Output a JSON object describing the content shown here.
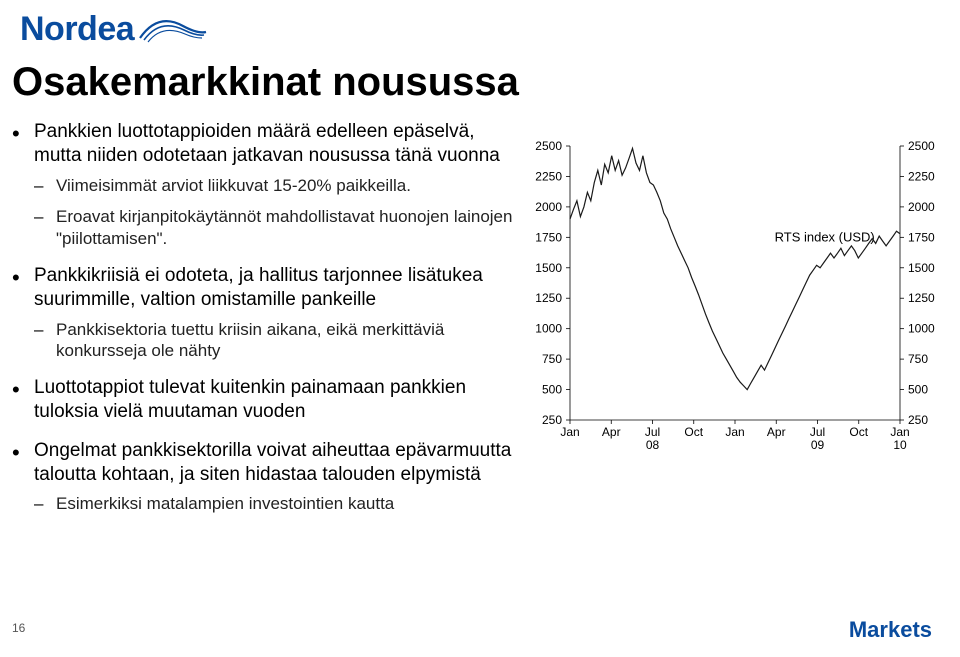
{
  "logo": {
    "text": "Nordea"
  },
  "title": "Osakemarkkinat nousussa",
  "bullets": [
    {
      "text": "Pankkien luottotappioiden määrä edelleen epäselvä, mutta niiden odotetaan jatkavan nousussa tänä vuonna",
      "sub": [
        "Viimeisimmät arviot liikkuvat 15-20% paikkeilla.",
        "Eroavat kirjanpitokäytännöt mahdollistavat huonojen lainojen \"piilottamisen\"."
      ]
    },
    {
      "text": "Pankkikriisiä ei odoteta, ja hallitus tarjonnee lisätukea suurimmille, valtion omistamille pankeille",
      "sub": [
        "Pankkisektoria tuettu kriisin aikana, eikä merkittäviä konkursseja ole nähty"
      ]
    },
    {
      "text": "Luottotappiot tulevat kuitenkin painamaan pankkien tuloksia vielä muutaman vuoden",
      "sub": []
    },
    {
      "text": "Ongelmat pankkisektorilla voivat aiheuttaa epävarmuutta taloutta kohtaan, ja siten hidastaa talouden elpymistä",
      "sub": [
        "Esimerkiksi matalampien investointien kautta"
      ]
    }
  ],
  "chart": {
    "type": "line",
    "series_label": "RTS index (USD)",
    "y_ticks": [
      250,
      500,
      750,
      1000,
      1250,
      1500,
      1750,
      2000,
      2250,
      2500
    ],
    "ylim": [
      250,
      2500
    ],
    "x_ticks": [
      "Jan",
      "Apr",
      "Jul\n08",
      "Oct",
      "Jan",
      "Apr",
      "Jul\n09",
      "Oct",
      "Jan\n10"
    ],
    "x_count_points": 96,
    "line_color": "#1a1a1a",
    "line_width": 1.2,
    "axis_color": "#000000",
    "axis_width": 0.8,
    "background_color": "#ffffff",
    "tick_font_size": 12,
    "label_font_size": 13,
    "tick_color": "#000000",
    "series": [
      1900,
      1980,
      2050,
      1920,
      2000,
      2120,
      2050,
      2200,
      2300,
      2180,
      2350,
      2280,
      2420,
      2300,
      2380,
      2260,
      2320,
      2400,
      2480,
      2360,
      2300,
      2420,
      2280,
      2200,
      2180,
      2120,
      2050,
      1950,
      1900,
      1820,
      1750,
      1680,
      1620,
      1560,
      1500,
      1420,
      1350,
      1280,
      1200,
      1120,
      1050,
      980,
      920,
      860,
      800,
      750,
      700,
      650,
      600,
      560,
      530,
      500,
      550,
      600,
      650,
      700,
      660,
      720,
      780,
      840,
      900,
      960,
      1020,
      1080,
      1140,
      1200,
      1260,
      1320,
      1380,
      1440,
      1480,
      1520,
      1500,
      1540,
      1580,
      1620,
      1580,
      1620,
      1660,
      1600,
      1640,
      1680,
      1640,
      1580,
      1620,
      1660,
      1700,
      1740,
      1700,
      1760,
      1720,
      1680,
      1720,
      1760,
      1800,
      1780
    ]
  },
  "page_number": "16",
  "footer_brand": "Markets"
}
